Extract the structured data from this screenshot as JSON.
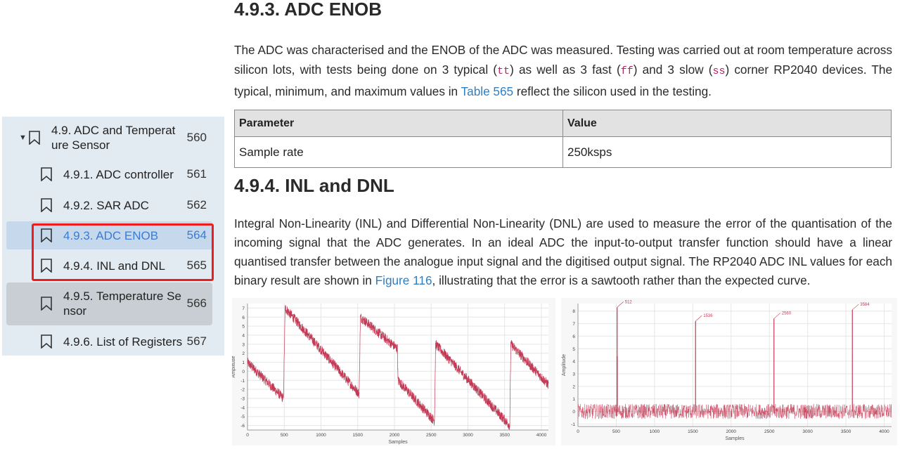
{
  "sidebar": {
    "items": [
      {
        "label": "4.9. ADC and Temperat ure Sensor",
        "page": "560"
      },
      {
        "label": "4.9.1. ADC controller",
        "page": "561"
      },
      {
        "label": "4.9.2. SAR ADC",
        "page": "562"
      },
      {
        "label": "4.9.3. ADC ENOB",
        "page": "564"
      },
      {
        "label": "4.9.4. INL and DNL",
        "page": "565"
      },
      {
        "label": "4.9.5. Temperature Se nsor",
        "page": "566"
      },
      {
        "label": "4.9.6. List of Registers",
        "page": "567"
      }
    ],
    "expanded_caret": "▼"
  },
  "section_enob": {
    "heading": "4.9.3. ADC ENOB",
    "para_a": "The ADC was characterised and the ENOB of the ADC was measured. Testing was carried out at room temperature across silicon lots, with tests being done on 3 typical (",
    "code_tt": "tt",
    "para_b": ") as well as 3 fast (",
    "code_ff": "ff",
    "para_c": ") and 3 slow (",
    "code_ss": "ss",
    "para_d": ") corner RP2040 devices. The typical, minimum, and maximum values in ",
    "link_table": "Table 565",
    "para_e": " reflect the silicon used in the testing."
  },
  "table": {
    "headers": [
      "Parameter",
      "Value"
    ],
    "rows": [
      [
        "Sample rate",
        "250ksps"
      ]
    ]
  },
  "section_inl": {
    "heading": "4.9.4. INL and DNL",
    "para_a": "Integral Non-Linearity (INL) and Differential Non-Linearity (DNL) are used to measure the error of the quantisation of the incoming signal that the ADC generates. In an ideal ADC the input-to-output transfer function should have a linear quantised transfer between the analogue input signal and the digitised output signal. The RP2040 ADC INL values for each binary result are shown in ",
    "link_figure": "Figure 116",
    "para_b": ", illustrating that the error is a sawtooth rather than the expected curve."
  },
  "colors": {
    "trace": "#c23a55",
    "highlight_box": "#ee1c1c",
    "link": "#2f7fc1",
    "sidebar_bg": "#e3ebf2",
    "selected_bg": "#c6d9ec"
  },
  "chart_data": [
    {
      "type": "line",
      "xlabel": "Samples",
      "ylabel": "Amplitude",
      "xlim": [
        0,
        4096
      ],
      "ylim": [
        -6.5,
        7.5
      ],
      "xticks": [
        0,
        500,
        1000,
        1500,
        2000,
        2500,
        3000,
        3500,
        4000
      ],
      "yticks": [
        7,
        6,
        5,
        4,
        3,
        2,
        1,
        0,
        -1,
        -2,
        -3,
        -4,
        -5,
        -6
      ],
      "grid": true,
      "series": [
        {
          "x": [
            0,
            490,
            512,
            1520,
            1536,
            2040,
            2048,
            2545,
            2560,
            3570,
            3584,
            4096
          ],
          "values": [
            1.0,
            -3.0,
            7.0,
            -2.5,
            6.0,
            2.5,
            -1.0,
            -5.5,
            3.0,
            -6.0,
            3.0,
            -1.5
          ]
        }
      ]
    },
    {
      "type": "line",
      "xlabel": "Samples",
      "ylabel": "Amplitude",
      "xlim": [
        0,
        4096
      ],
      "ylim": [
        -1.2,
        8.6
      ],
      "xticks": [
        0,
        500,
        1000,
        1500,
        2000,
        2500,
        3000,
        3500,
        4000
      ],
      "yticks": [
        8,
        7,
        6,
        5,
        4,
        3,
        2,
        1,
        0,
        -1
      ],
      "grid": true,
      "annotations": [
        "512",
        "1536",
        "2560",
        "3584"
      ],
      "spikes": [
        {
          "x": 512,
          "value": 8.3
        },
        {
          "x": 1536,
          "value": 7.2
        },
        {
          "x": 2560,
          "value": 7.4
        },
        {
          "x": 3584,
          "value": 8.1
        }
      ],
      "baseline_range": [
        -0.6,
        0.6
      ]
    }
  ]
}
